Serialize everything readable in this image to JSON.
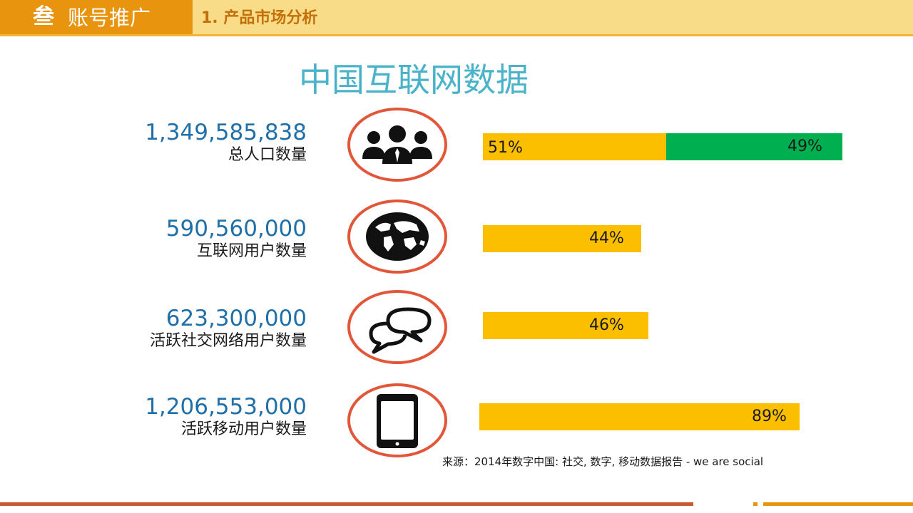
{
  "header": {
    "section_number": "叁",
    "section_title": "账号推广",
    "subtitle": "1. 产品市场分析"
  },
  "chart_data": {
    "type": "bar",
    "title": "中国互联网数据",
    "rows": [
      {
        "number": "1,349,585,838",
        "label": "总人口数量",
        "icon": "people-icon",
        "segments": [
          {
            "value": 51,
            "text": "51%",
            "color": "#fcbf00"
          },
          {
            "value": 49,
            "text": "49%",
            "color": "#00b050"
          }
        ]
      },
      {
        "number": "590,560,000",
        "label": "互联网用户数量",
        "icon": "globe-icon",
        "segments": [
          {
            "value": 44,
            "text": "44%",
            "color": "#fcbf00"
          }
        ]
      },
      {
        "number": "623,300,000",
        "label": "活跃社交网络用户数量",
        "icon": "chat-bubbles-icon",
        "segments": [
          {
            "value": 46,
            "text": "46%",
            "color": "#fcbf00"
          }
        ]
      },
      {
        "number": "1,206,553,000",
        "label": "活跃移动用户数量",
        "icon": "tablet-icon",
        "segments": [
          {
            "value": 89,
            "text": "89%",
            "color": "#fcbf00"
          }
        ]
      }
    ],
    "xlim": [
      0,
      100
    ],
    "source": "来源：2014年数字中国: 社交, 数字, 移动数据报告 - we are social"
  },
  "colors": {
    "ring": "#e2563a",
    "header_dark": "#e8940f",
    "header_light": "#f9dc88",
    "number": "#1f6fa8",
    "title": "#4ab3c9"
  }
}
